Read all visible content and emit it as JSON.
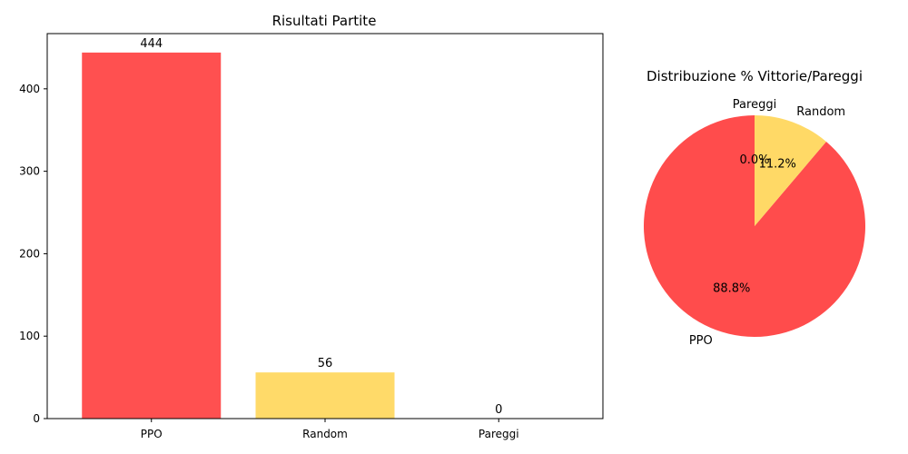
{
  "chart_data": [
    {
      "type": "bar",
      "title": "Risultati Partite",
      "categories": [
        "PPO",
        "Random",
        "Pareggi"
      ],
      "values": [
        444,
        56,
        0
      ],
      "value_labels": [
        "444",
        "56",
        "0"
      ],
      "colors": [
        "#ff4c4c",
        "#ffd966",
        "#d3d3d3"
      ],
      "ylim": [
        0,
        467
      ],
      "yticks": [
        0,
        100,
        200,
        300,
        400
      ],
      "grid": false
    },
    {
      "type": "pie",
      "title": "Distribuzione % Vittorie/Pareggi",
      "labels": [
        "PPO",
        "Random",
        "Pareggi"
      ],
      "values": [
        444,
        56,
        0
      ],
      "percent_labels": [
        "88.8%",
        "11.2%",
        "0.0%"
      ],
      "colors": [
        "#ff4c4c",
        "#ffd966",
        "#d3d3d3"
      ],
      "start_angle_deg": 90,
      "direction": "counterclockwise"
    }
  ]
}
